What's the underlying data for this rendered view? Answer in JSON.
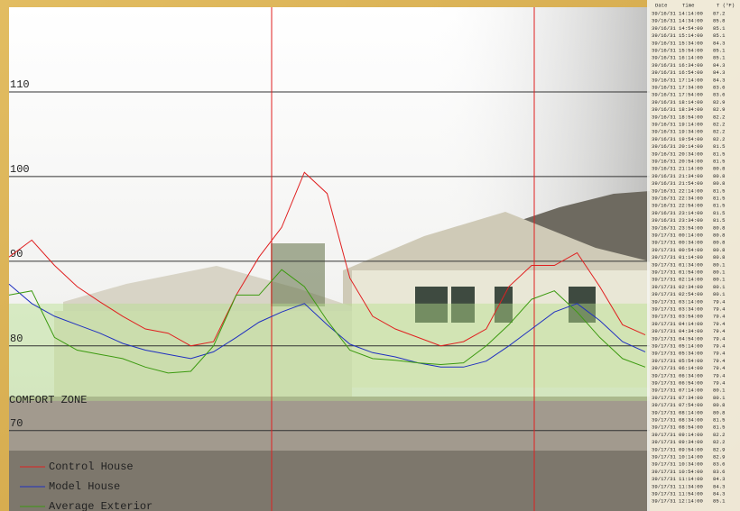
{
  "chart_data": {
    "type": "line",
    "series": [
      {
        "name": "Control House",
        "color": "#e02020",
        "values": [
          90.5,
          92.5,
          89.5,
          87,
          85.2,
          83.5,
          82,
          81.5,
          80,
          80.5,
          86,
          90.5,
          94,
          100.5,
          98,
          88,
          83.5,
          82,
          81,
          80,
          80.5,
          82,
          87,
          89.5,
          89.5,
          91,
          87,
          82.5,
          81.3
        ]
      },
      {
        "name": "Model House",
        "color": "#2030c0",
        "values": [
          87.3,
          85,
          83.5,
          82.5,
          81.5,
          80.3,
          79.5,
          79,
          78.5,
          79.3,
          81,
          82.8,
          84,
          85,
          82.5,
          80.2,
          79.2,
          78.7,
          78,
          77.5,
          77.5,
          78.2,
          80,
          82,
          84,
          85,
          83,
          80.5,
          79.3
        ]
      },
      {
        "name": "Average Exterior",
        "color": "#3c9a10",
        "values": [
          86,
          86.5,
          81,
          79.5,
          79,
          78.5,
          77.5,
          76.8,
          77,
          80,
          86,
          86,
          89,
          87,
          83,
          79.5,
          78.5,
          78.3,
          78,
          77.8,
          78,
          80,
          82.5,
          85.5,
          86.5,
          84,
          81,
          78.5,
          77.5
        ]
      }
    ],
    "ylim": [
      60.5,
      120
    ],
    "yticks": [
      70,
      80,
      90,
      100,
      110
    ],
    "grid": true,
    "comfort_zone": {
      "label": "COMFORT ZONE",
      "range": [
        73.5,
        85
      ]
    }
  },
  "table": {
    "header": [
      "Date",
      "Time",
      "T (°F)"
    ],
    "rows": [
      [
        "39/16/31",
        "14:14:00",
        87.2
      ],
      [
        "39/16/31",
        "14:34:00",
        85.8
      ],
      [
        "39/16/31",
        "14:54:00",
        85.1
      ],
      [
        "39/16/31",
        "15:14:00",
        85.1
      ],
      [
        "39/16/31",
        "15:34:00",
        84.3
      ],
      [
        "39/16/31",
        "15:54:00",
        85.1
      ],
      [
        "39/16/31",
        "16:14:00",
        85.1
      ],
      [
        "39/16/31",
        "16:34:00",
        84.3
      ],
      [
        "39/16/31",
        "16:54:00",
        84.3
      ],
      [
        "39/16/31",
        "17:14:00",
        84.3
      ],
      [
        "39/16/31",
        "17:34:00",
        83.6
      ],
      [
        "39/16/31",
        "17:54:00",
        83.6
      ],
      [
        "39/16/31",
        "18:14:00",
        82.9
      ],
      [
        "39/16/31",
        "18:34:00",
        82.9
      ],
      [
        "39/16/31",
        "18:54:00",
        82.2
      ],
      [
        "39/16/31",
        "19:14:00",
        82.2
      ],
      [
        "39/16/31",
        "19:34:00",
        82.2
      ],
      [
        "39/16/31",
        "19:54:00",
        82.2
      ],
      [
        "39/16/31",
        "20:14:00",
        81.5
      ],
      [
        "39/16/31",
        "20:34:00",
        81.5
      ],
      [
        "39/16/31",
        "20:54:00",
        81.5
      ],
      [
        "39/16/31",
        "21:14:00",
        80.8
      ],
      [
        "39/16/31",
        "21:34:00",
        80.8
      ],
      [
        "39/16/31",
        "21:54:00",
        80.8
      ],
      [
        "39/16/31",
        "22:14:00",
        81.5
      ],
      [
        "39/16/31",
        "22:34:00",
        81.5
      ],
      [
        "39/16/31",
        "22:54:00",
        81.5
      ],
      [
        "39/16/31",
        "23:14:00",
        81.5
      ],
      [
        "39/16/31",
        "23:34:00",
        81.5
      ],
      [
        "39/16/31",
        "23:54:00",
        80.8
      ],
      [
        "39/17/31",
        "00:14:00",
        80.8
      ],
      [
        "39/17/31",
        "00:34:00",
        80.8
      ],
      [
        "39/17/31",
        "00:54:00",
        80.8
      ],
      [
        "39/17/31",
        "01:14:00",
        80.8
      ],
      [
        "39/17/31",
        "01:34:00",
        80.1
      ],
      [
        "39/17/31",
        "01:54:00",
        80.1
      ],
      [
        "39/17/31",
        "02:14:00",
        80.1
      ],
      [
        "39/17/31",
        "02:34:00",
        80.1
      ],
      [
        "39/17/31",
        "02:54:00",
        80.1
      ],
      [
        "39/17/31",
        "03:14:00",
        79.4
      ],
      [
        "39/17/31",
        "03:34:00",
        79.4
      ],
      [
        "39/17/31",
        "03:54:00",
        79.4
      ],
      [
        "39/17/31",
        "04:14:00",
        79.4
      ],
      [
        "39/17/31",
        "04:34:00",
        79.4
      ],
      [
        "39/17/31",
        "04:54:00",
        79.4
      ],
      [
        "39/17/31",
        "05:14:00",
        79.4
      ],
      [
        "39/17/31",
        "05:34:00",
        79.4
      ],
      [
        "39/17/31",
        "05:54:00",
        79.4
      ],
      [
        "39/17/31",
        "06:14:00",
        79.4
      ],
      [
        "39/17/31",
        "06:34:00",
        79.4
      ],
      [
        "39/17/31",
        "06:54:00",
        79.4
      ],
      [
        "39/17/31",
        "07:14:00",
        80.1
      ],
      [
        "39/17/31",
        "07:34:00",
        80.1
      ],
      [
        "39/17/31",
        "07:54:00",
        80.8
      ],
      [
        "39/17/31",
        "08:14:00",
        80.8
      ],
      [
        "39/17/31",
        "08:34:00",
        81.5
      ],
      [
        "39/17/31",
        "08:54:00",
        81.5
      ],
      [
        "39/17/31",
        "09:14:00",
        82.2
      ],
      [
        "39/17/31",
        "09:34:00",
        82.2
      ],
      [
        "39/17/31",
        "09:54:00",
        82.9
      ],
      [
        "39/17/31",
        "10:14:00",
        82.9
      ],
      [
        "39/17/31",
        "10:34:00",
        83.6
      ],
      [
        "39/17/31",
        "10:54:00",
        83.6
      ],
      [
        "39/17/31",
        "11:14:00",
        84.3
      ],
      [
        "39/17/31",
        "11:34:00",
        84.3
      ],
      [
        "39/17/31",
        "11:54:00",
        84.3
      ],
      [
        "39/17/31",
        "12:14:00",
        85.1
      ]
    ]
  }
}
